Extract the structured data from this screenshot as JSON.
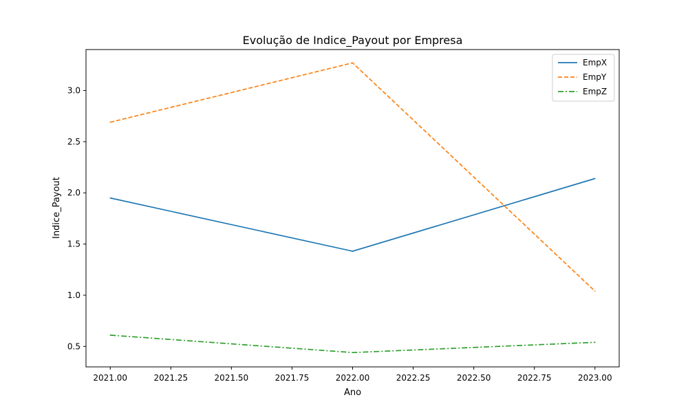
{
  "chart_data": {
    "type": "line",
    "title": "Evolução de Indice_Payout por Empresa",
    "xlabel": "Ano",
    "ylabel": "Indice_Payout",
    "x": [
      2021.0,
      2022.0,
      2023.0
    ],
    "xlim": [
      2020.9,
      2023.1
    ],
    "ylim": [
      0.3,
      3.4
    ],
    "xticks": [
      2021.0,
      2021.25,
      2021.5,
      2021.75,
      2022.0,
      2022.25,
      2022.5,
      2022.75,
      2023.0
    ],
    "xtick_labels": [
      "2021.00",
      "2021.25",
      "2021.50",
      "2021.75",
      "2022.00",
      "2022.25",
      "2022.50",
      "2022.75",
      "2023.00"
    ],
    "yticks": [
      0.5,
      1.0,
      1.5,
      2.0,
      2.5,
      3.0
    ],
    "ytick_labels": [
      "0.5",
      "1.0",
      "1.5",
      "2.0",
      "2.5",
      "3.0"
    ],
    "grid": false,
    "legend_position": "top-right",
    "series": [
      {
        "name": "EmpX",
        "values": [
          1.95,
          1.43,
          2.14
        ],
        "color": "#1f77b4",
        "style": "solid"
      },
      {
        "name": "EmpY",
        "values": [
          2.69,
          3.27,
          1.04
        ],
        "color": "#ff7f0e",
        "style": "dashed"
      },
      {
        "name": "EmpZ",
        "values": [
          0.61,
          0.44,
          0.54
        ],
        "color": "#2ca02c",
        "style": "dashdot"
      }
    ]
  }
}
